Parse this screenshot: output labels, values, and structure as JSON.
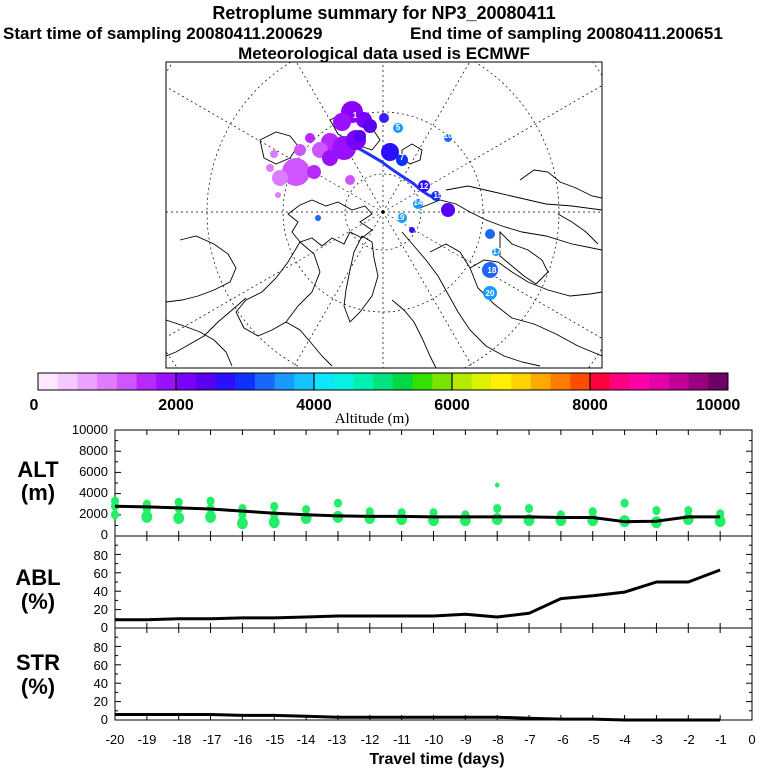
{
  "header": {
    "title": "Retroplume summary for NP3_20080411",
    "start_label": "Start time of sampling 20080411.200629",
    "end_label": "End time of sampling 20080411.200651",
    "met_label": "Meteorological data used is ECMWF"
  },
  "colors": {
    "plume_green": "#22ee66",
    "track_blue": "#2233ff",
    "line": "#000000",
    "colorbar": [
      "#ffe8ff",
      "#f5c8ff",
      "#e9a2ff",
      "#dd7cff",
      "#cf56ff",
      "#b829ff",
      "#9a10ff",
      "#7a00ff",
      "#5a00f0",
      "#2a10ff",
      "#1030ff",
      "#1a66ff",
      "#1a99ff",
      "#14c2ff",
      "#0ee6ff",
      "#06f2e2",
      "#00f0b0",
      "#00e27a",
      "#00d846",
      "#35e000",
      "#7ae400",
      "#b3ea00",
      "#ddf000",
      "#fff000",
      "#ffd200",
      "#ffa800",
      "#ff7c00",
      "#ff4c00",
      "#ff0040",
      "#ff0080",
      "#ff00a8",
      "#e500a8",
      "#c10098",
      "#98007e",
      "#6e0068"
    ]
  },
  "map": {
    "time_labels": [
      "1",
      "4",
      "5",
      "7",
      "10",
      "12",
      "14",
      "15",
      "16",
      "17",
      "18",
      "19",
      "20"
    ]
  },
  "colorbar": {
    "ticks": [
      "0",
      "2000",
      "4000",
      "6000",
      "8000",
      "10000"
    ],
    "label": "Altitude (m)"
  },
  "chart_data": [
    {
      "type": "line",
      "panel_label": "ALT",
      "panel_unit": "(m)",
      "x": [
        -20,
        -19,
        -18,
        -17,
        -16,
        -15,
        -14,
        -13,
        -12,
        -11,
        -10,
        -9,
        -8,
        -7,
        -6,
        -5,
        -4,
        -3,
        -2,
        -1
      ],
      "y": [
        2800,
        2750,
        2650,
        2550,
        2350,
        2150,
        2000,
        1900,
        1850,
        1850,
        1800,
        1800,
        1800,
        1800,
        1750,
        1750,
        1350,
        1400,
        1800,
        1800
      ],
      "ylim": [
        0,
        10000
      ],
      "yticks": [
        "0",
        "2000",
        "4000",
        "6000",
        "8000",
        "10000"
      ],
      "plume_scatter": {
        "x": [
          -20,
          -20,
          -20,
          -19,
          -19,
          -19,
          -18,
          -18,
          -18,
          -17,
          -17,
          -17,
          -16,
          -16,
          -16,
          -15,
          -15,
          -15,
          -14,
          -14,
          -13,
          -13,
          -12,
          -12,
          -11,
          -11,
          -10,
          -10,
          -9,
          -9,
          -8,
          -8,
          -8,
          -7,
          -7,
          -6,
          -6,
          -5,
          -5,
          -4,
          -4,
          -3,
          -3,
          -2,
          -2,
          -1,
          -1
        ],
        "y": [
          3300,
          2800,
          2000,
          3000,
          2500,
          1800,
          3200,
          2600,
          1700,
          3300,
          2600,
          1800,
          2600,
          2000,
          1200,
          2800,
          2000,
          1300,
          2500,
          1700,
          3100,
          1800,
          2300,
          1700,
          2200,
          1600,
          2200,
          1500,
          2000,
          1500,
          4800,
          2600,
          1600,
          2600,
          1500,
          2000,
          1500,
          2300,
          1500,
          3100,
          1400,
          2400,
          1300,
          2400,
          1600,
          2100,
          1400
        ]
      }
    },
    {
      "type": "line",
      "panel_label": "ABL",
      "panel_unit": "(%)",
      "x": [
        -20,
        -19,
        -18,
        -17,
        -16,
        -15,
        -14,
        -13,
        -12,
        -11,
        -10,
        -9,
        -8,
        -7,
        -6,
        -5,
        -4,
        -3,
        -2,
        -1
      ],
      "y": [
        9,
        9,
        10,
        10,
        11,
        11,
        12,
        13,
        13,
        13,
        13,
        15,
        12,
        16,
        32,
        35,
        39,
        50,
        50,
        63
      ],
      "ylim": [
        0,
        100
      ],
      "yticks": [
        "0",
        "20",
        "40",
        "60",
        "80"
      ]
    },
    {
      "type": "line",
      "panel_label": "STR",
      "panel_unit": "(%)",
      "x": [
        -20,
        -19,
        -18,
        -17,
        -16,
        -15,
        -14,
        -13,
        -12,
        -11,
        -10,
        -9,
        -8,
        -7,
        -6,
        -5,
        -4,
        -3,
        -2,
        -1
      ],
      "y": [
        6,
        6,
        6,
        6,
        5,
        5,
        4,
        3,
        3,
        3,
        3,
        3,
        3,
        2,
        1,
        1,
        0,
        0,
        0,
        0
      ],
      "ylim": [
        0,
        100
      ],
      "yticks": [
        "0",
        "20",
        "40",
        "60",
        "80"
      ],
      "xlabel": "Travel time (days)",
      "xticks": [
        "-20",
        "-19",
        "-18",
        "-17",
        "-16",
        "-15",
        "-14",
        "-13",
        "-12",
        "-11",
        "-10",
        "-9",
        "-8",
        "-7",
        "-6",
        "-5",
        "-4",
        "-3",
        "-2",
        "-1",
        "0"
      ]
    }
  ]
}
